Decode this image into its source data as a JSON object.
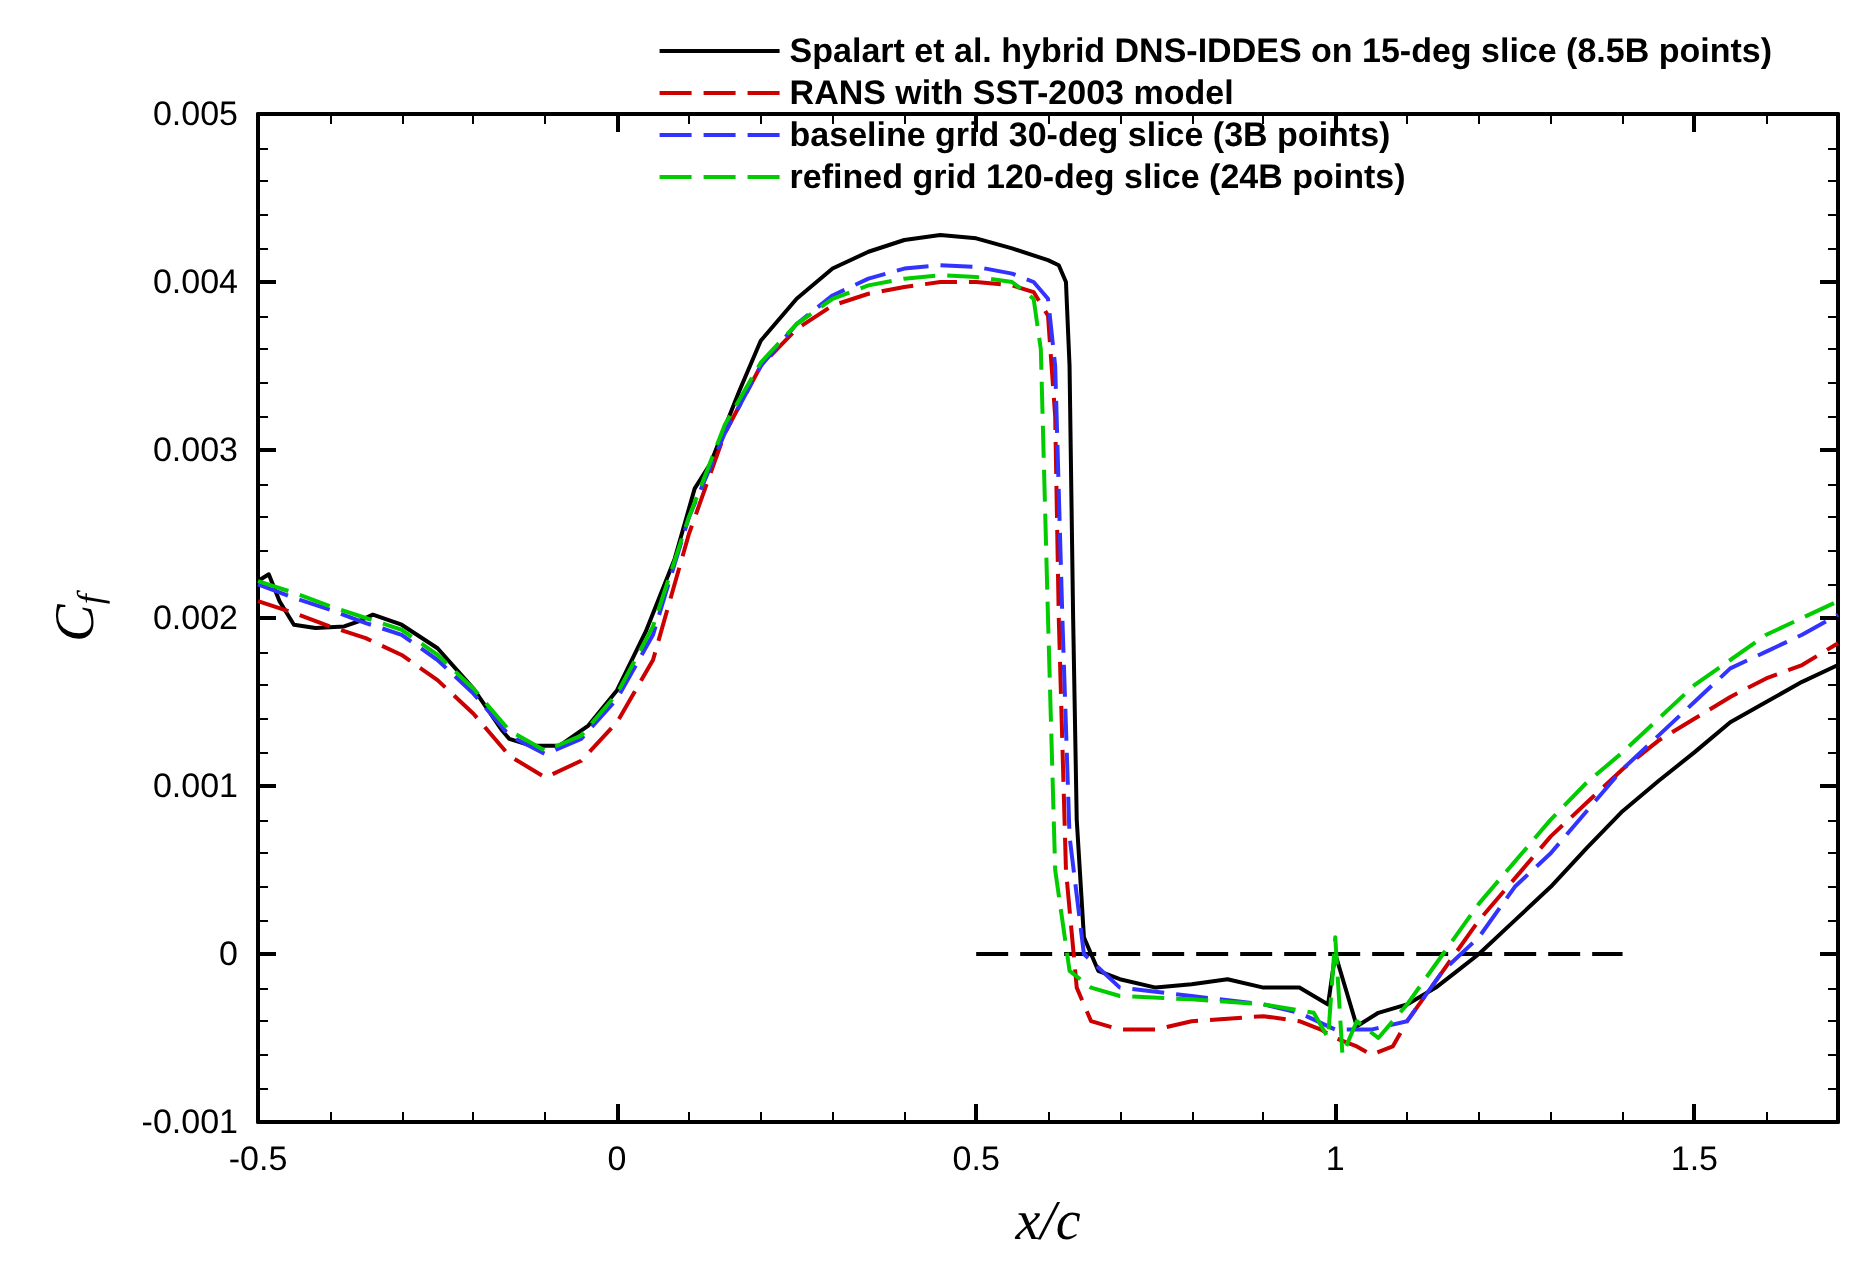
{
  "chart_data": {
    "type": "line",
    "xlabel": "x/c",
    "ylabel": "C$_{f}$",
    "xlim": [
      -0.5,
      1.7
    ],
    "xticks": [
      -0.5,
      0,
      0.5,
      1,
      1.5
    ],
    "ylim": [
      -0.001,
      0.005
    ],
    "yticks": [
      -0.001,
      0,
      0.001,
      0.002,
      0.003,
      0.004,
      0.005
    ],
    "grid": false,
    "legend": "top right",
    "marker": "none",
    "series": [
      {
        "name": "Spalart et al. hybrid DNS-IDDES on 15-deg slice (8.5B points)",
        "color": "#000000",
        "line_style": "solid",
        "x": [
          -0.5,
          -0.485,
          -0.47,
          -0.45,
          -0.42,
          -0.38,
          -0.36,
          -0.34,
          -0.3,
          -0.25,
          -0.2,
          -0.16,
          -0.15,
          -0.12,
          -0.08,
          -0.04,
          0,
          0.04,
          0.08,
          0.1,
          0.108,
          0.13,
          0.17,
          0.2,
          0.25,
          0.3,
          0.35,
          0.4,
          0.45,
          0.5,
          0.55,
          0.6,
          0.615,
          0.625,
          0.63,
          0.635,
          0.64,
          0.65,
          0.67,
          0.7,
          0.75,
          0.8,
          0.85,
          0.9,
          0.95,
          0.99,
          1.0,
          1.03,
          1.06,
          1.1,
          1.14,
          1.17,
          1.2,
          1.25,
          1.3,
          1.35,
          1.4,
          1.45,
          1.5,
          1.55,
          1.6,
          1.65,
          1.7
        ],
        "values": [
          0.00222,
          0.00226,
          0.0021,
          0.00196,
          0.00194,
          0.00195,
          0.00198,
          0.00202,
          0.00196,
          0.00182,
          0.00158,
          0.00133,
          0.00128,
          0.00124,
          0.00124,
          0.00136,
          0.00157,
          0.00192,
          0.00235,
          0.00265,
          0.00277,
          0.00292,
          0.00335,
          0.00365,
          0.0039,
          0.00408,
          0.00418,
          0.00425,
          0.00428,
          0.00426,
          0.0042,
          0.00413,
          0.0041,
          0.004,
          0.0035,
          0.002,
          0.0008,
          0.0001,
          -0.0001,
          -0.00015,
          -0.0002,
          -0.00018,
          -0.00015,
          -0.0002,
          -0.0002,
          -0.0003,
          0.0,
          -0.00043,
          -0.00035,
          -0.0003,
          -0.0002,
          -0.0001,
          0.0,
          0.0002,
          0.0004,
          0.00063,
          0.00085,
          0.00103,
          0.0012,
          0.00138,
          0.0015,
          0.00162,
          0.00172
        ]
      },
      {
        "name": "RANS with SST-2003 model",
        "color": "#cc0000",
        "line_style": "dashed",
        "x": [
          -0.5,
          -0.45,
          -0.4,
          -0.35,
          -0.3,
          -0.25,
          -0.2,
          -0.15,
          -0.1,
          -0.05,
          0,
          0.05,
          0.1,
          0.15,
          0.2,
          0.25,
          0.3,
          0.35,
          0.4,
          0.45,
          0.5,
          0.55,
          0.58,
          0.6,
          0.61,
          0.615,
          0.625,
          0.64,
          0.66,
          0.7,
          0.75,
          0.8,
          0.9,
          0.95,
          0.98,
          1.0,
          1.03,
          1.05,
          1.08,
          1.1,
          1.15,
          1.2,
          1.25,
          1.3,
          1.35,
          1.4,
          1.45,
          1.5,
          1.55,
          1.6,
          1.65,
          1.7
        ],
        "values": [
          0.0021,
          0.00203,
          0.00195,
          0.00188,
          0.00178,
          0.00163,
          0.00143,
          0.00118,
          0.00105,
          0.00115,
          0.00138,
          0.00175,
          0.0025,
          0.0031,
          0.0035,
          0.00372,
          0.00386,
          0.00393,
          0.00397,
          0.004,
          0.004,
          0.00398,
          0.00394,
          0.0038,
          0.0032,
          0.002,
          0.0005,
          -0.0002,
          -0.0004,
          -0.00045,
          -0.00045,
          -0.0004,
          -0.00037,
          -0.0004,
          -0.00045,
          -0.0005,
          -0.00055,
          -0.0006,
          -0.00055,
          -0.0004,
          -0.0001,
          0.0002,
          0.00045,
          0.0007,
          0.0009,
          0.0011,
          0.00127,
          0.0014,
          0.00153,
          0.00164,
          0.00172,
          0.00185
        ]
      },
      {
        "name": "baseline grid 30-deg slice (3B points)",
        "color": "#3333ff",
        "line_style": "dashed",
        "x": [
          -0.5,
          -0.45,
          -0.4,
          -0.35,
          -0.3,
          -0.25,
          -0.2,
          -0.15,
          -0.1,
          -0.05,
          0,
          0.05,
          0.1,
          0.15,
          0.2,
          0.25,
          0.3,
          0.35,
          0.4,
          0.45,
          0.5,
          0.55,
          0.58,
          0.6,
          0.61,
          0.62,
          0.63,
          0.65,
          0.7,
          0.8,
          0.9,
          0.95,
          1.0,
          1.05,
          1.1,
          1.15,
          1.2,
          1.25,
          1.3,
          1.35,
          1.4,
          1.45,
          1.5,
          1.55,
          1.6,
          1.65,
          1.7
        ],
        "values": [
          0.0022,
          0.00212,
          0.00205,
          0.00197,
          0.0019,
          0.00175,
          0.00155,
          0.0013,
          0.00119,
          0.00128,
          0.00152,
          0.0019,
          0.0026,
          0.0031,
          0.0035,
          0.00375,
          0.00392,
          0.00402,
          0.00408,
          0.0041,
          0.00409,
          0.00405,
          0.004,
          0.0039,
          0.0035,
          0.002,
          0.0007,
          0.0,
          -0.0002,
          -0.00025,
          -0.0003,
          -0.00035,
          -0.00045,
          -0.00045,
          -0.0004,
          -0.0001,
          0.0001,
          0.0004,
          0.0006,
          0.00085,
          0.0011,
          0.0013,
          0.0015,
          0.0017,
          0.0018,
          0.0019,
          0.00202
        ]
      },
      {
        "name": "refined grid 120-deg slice (24B points)",
        "color": "#00cc00",
        "line_style": "dashed",
        "x": [
          -0.5,
          -0.45,
          -0.4,
          -0.35,
          -0.3,
          -0.25,
          -0.2,
          -0.15,
          -0.1,
          -0.05,
          0,
          0.05,
          0.1,
          0.15,
          0.2,
          0.25,
          0.3,
          0.35,
          0.4,
          0.45,
          0.5,
          0.55,
          0.58,
          0.59,
          0.6,
          0.61,
          0.63,
          0.66,
          0.7,
          0.8,
          0.9,
          0.97,
          0.99,
          1.0,
          1.01,
          1.03,
          1.06,
          1.1,
          1.15,
          1.2,
          1.25,
          1.3,
          1.35,
          1.4,
          1.45,
          1.5,
          1.55,
          1.6,
          1.65,
          1.7
        ],
        "values": [
          0.00222,
          0.00215,
          0.00207,
          0.002,
          0.00193,
          0.00178,
          0.00158,
          0.00133,
          0.00121,
          0.0013,
          0.00155,
          0.00195,
          0.0026,
          0.00315,
          0.00352,
          0.00375,
          0.0039,
          0.00398,
          0.00402,
          0.00404,
          0.00403,
          0.004,
          0.0039,
          0.0036,
          0.002,
          0.0005,
          -0.0001,
          -0.0002,
          -0.00025,
          -0.00027,
          -0.0003,
          -0.00035,
          -0.0005,
          0.0001,
          -0.0006,
          -0.0004,
          -0.0005,
          -0.0003,
          0.0,
          0.0003,
          0.00055,
          0.0008,
          0.00102,
          0.0012,
          0.0014,
          0.0016,
          0.00175,
          0.0019,
          0.002,
          0.0021
        ]
      },
      {
        "color": "#000000",
        "line_style": "dashed",
        "x": [
          0.5,
          1.4
        ],
        "values": [
          0,
          0
        ]
      }
    ]
  }
}
